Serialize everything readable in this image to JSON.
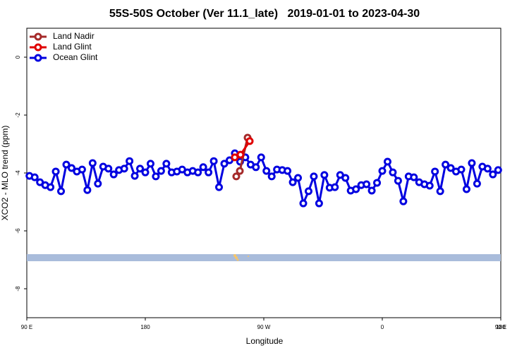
{
  "chart_data": {
    "type": "line",
    "title": "55S-50S October (Ver 11.1_late)   2019-01-01 to 2023-04-30",
    "x_label": "Longitude",
    "y_label": "XCO2 - MLO trend (ppm)",
    "xlim": [
      90,
      450
    ],
    "xticks": [
      {
        "value": 90,
        "label": "90 E"
      },
      180,
      {
        "value": 270,
        "label": "90 W"
      },
      {
        "value": 360,
        "label": "0"
      },
      {
        "value": 450,
        "label": "90 E"
      },
      {
        "value": 540,
        "label": "180"
      }
    ],
    "ylim": [
      -9,
      1
    ],
    "yticks": [
      0,
      -2,
      -4,
      -6,
      -8
    ],
    "legend": "top-left",
    "series": [
      {
        "name": "Land Nadir",
        "color": "#a52a2a",
        "x": [
          249.1,
          251.8,
          257.7
        ],
        "values": [
          -4.12,
          -3.93,
          -2.78
        ]
      },
      {
        "name": "Land Glint",
        "color": "#e00000",
        "x": [
          248.0,
          252.3,
          259.3
        ],
        "values": [
          -3.46,
          -3.37,
          -2.9
        ]
      },
      {
        "name": "Ocean Glint",
        "color": "#0000e0",
        "x": [
          92,
          96,
          100,
          104,
          108,
          112,
          116,
          120,
          124,
          128,
          132,
          136,
          140,
          144,
          148,
          152,
          156,
          160,
          164,
          168,
          172,
          176,
          180,
          184,
          188,
          192,
          196,
          200,
          204,
          208,
          212,
          216,
          220,
          224,
          228,
          232,
          236,
          240,
          244,
          248,
          252,
          256,
          260,
          264,
          268,
          272,
          276,
          280,
          284,
          288,
          292,
          296,
          300,
          304,
          308,
          312,
          316,
          320,
          324,
          328,
          332,
          336,
          340,
          344,
          348,
          352,
          356,
          360,
          364,
          368,
          372,
          376,
          380,
          384,
          388,
          392,
          396,
          400,
          404,
          408,
          412,
          416,
          420,
          424,
          428,
          432,
          436,
          440,
          444,
          448
        ],
        "values": [
          -4.1,
          -4.15,
          -4.32,
          -4.42,
          -4.49,
          -3.95,
          -4.63,
          -3.71,
          -3.83,
          -3.95,
          -3.88,
          -4.59,
          -3.66,
          -4.37,
          -3.78,
          -3.85,
          -4.05,
          -3.9,
          -3.85,
          -3.59,
          -4.1,
          -3.85,
          -3.98,
          -3.68,
          -4.12,
          -3.93,
          -3.68,
          -3.98,
          -3.95,
          -3.88,
          -3.98,
          -3.93,
          -3.98,
          -3.8,
          -3.98,
          -3.59,
          -4.49,
          -3.68,
          -3.56,
          -3.32,
          -3.61,
          -3.46,
          -3.71,
          -3.8,
          -3.46,
          -3.93,
          -4.12,
          -3.88,
          -3.9,
          -3.93,
          -4.32,
          -4.17,
          -5.05,
          -4.63,
          -4.12,
          -5.05,
          -4.07,
          -4.51,
          -4.49,
          -4.07,
          -4.17,
          -4.61,
          -4.56,
          -4.42,
          -4.39,
          -4.61,
          -4.34,
          -3.93,
          -3.61,
          -3.98,
          -4.27,
          -4.98,
          -4.12,
          -4.15,
          -4.32,
          -4.39,
          -4.44,
          -3.95,
          -4.63,
          -3.71,
          -3.83,
          -3.95,
          -3.88,
          -4.56,
          -3.66,
          -4.37,
          -3.78,
          -3.85,
          -4.05,
          -3.9
        ]
      }
    ]
  }
}
